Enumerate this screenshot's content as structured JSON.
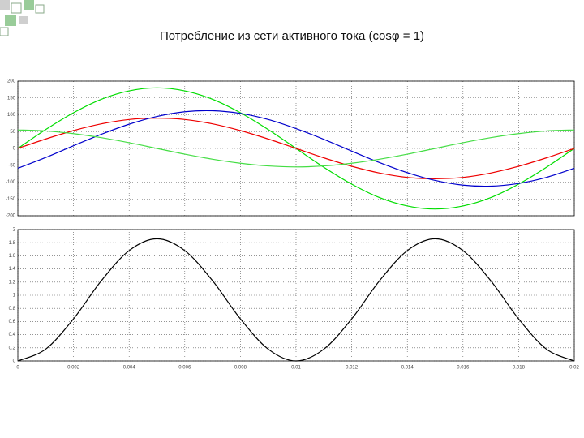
{
  "title": "Потребление из сети активного тока (cosφ = 1)",
  "chart_data": [
    {
      "type": "line",
      "x": [
        0,
        0.001,
        0.002,
        0.003,
        0.004,
        0.005,
        0.006,
        0.007,
        0.008,
        0.009,
        0.01,
        0.011,
        0.012,
        0.013,
        0.014,
        0.015,
        0.016,
        0.017,
        0.018,
        0.019,
        0.02
      ],
      "xlim": [
        0,
        0.02
      ],
      "xticks": [
        0,
        0.002,
        0.004,
        0.006,
        0.008,
        0.01,
        0.012,
        0.014,
        0.016,
        0.018,
        0.02
      ],
      "ylim": [
        -200,
        200
      ],
      "yticks": [
        -200,
        -150,
        -100,
        -50,
        0,
        50,
        100,
        150,
        200
      ],
      "grid": true,
      "series": [
        {
          "color": "#00dd00",
          "values": [
            0,
            56,
            106,
            146,
            171,
            180,
            171,
            146,
            106,
            56,
            0,
            -56,
            -106,
            -146,
            -171,
            -180,
            -171,
            -146,
            -106,
            -56,
            0
          ]
        },
        {
          "color": "#ee0000",
          "values": [
            0,
            28,
            53,
            73,
            86,
            90,
            86,
            73,
            53,
            28,
            0,
            -28,
            -53,
            -73,
            -86,
            -90,
            -86,
            -73,
            -53,
            -28,
            0
          ]
        },
        {
          "color": "#0000cc",
          "values": [
            -59,
            -27,
            8,
            42,
            72,
            95,
            109,
            112,
            104,
            86,
            59,
            27,
            -8,
            -42,
            -72,
            -95,
            -109,
            -112,
            -104,
            -86,
            -59
          ]
        },
        {
          "color": "#44dd44",
          "values": [
            55,
            52,
            44,
            32,
            17,
            0,
            -17,
            -32,
            -44,
            -52,
            -55,
            -52,
            -44,
            -32,
            -17,
            0,
            17,
            32,
            44,
            52,
            55
          ]
        }
      ]
    },
    {
      "type": "line",
      "x": [
        0,
        0.001,
        0.002,
        0.003,
        0.004,
        0.005,
        0.006,
        0.007,
        0.008,
        0.009,
        0.01,
        0.011,
        0.012,
        0.013,
        0.014,
        0.015,
        0.016,
        0.017,
        0.018,
        0.019,
        0.02
      ],
      "xlim": [
        0,
        0.02
      ],
      "xticks": [
        0,
        0.002,
        0.004,
        0.006,
        0.008,
        0.01,
        0.012,
        0.014,
        0.016,
        0.018,
        0.02
      ],
      "ylim": [
        0,
        2
      ],
      "yticks": [
        0,
        0.2,
        0.4,
        0.6,
        0.8,
        1,
        1.2,
        1.4,
        1.6,
        1.8,
        2
      ],
      "grid": true,
      "xticklabels": true,
      "series": [
        {
          "color": "#000000",
          "values": [
            0,
            0.18,
            0.64,
            1.22,
            1.68,
            1.86,
            1.68,
            1.22,
            0.64,
            0.18,
            0,
            0.18,
            0.64,
            1.22,
            1.68,
            1.86,
            1.68,
            1.22,
            0.64,
            0.18,
            0
          ]
        }
      ]
    }
  ]
}
